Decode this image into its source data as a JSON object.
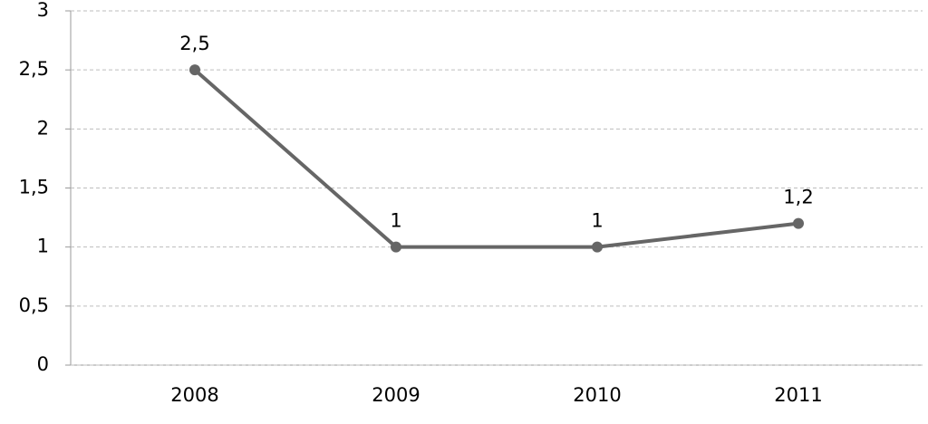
{
  "chart_data": {
    "type": "line",
    "categories": [
      "2008",
      "2009",
      "2010",
      "2011"
    ],
    "series": [
      {
        "name": "Series 1",
        "color": "#666666",
        "values": [
          2.5,
          1,
          1,
          1.2
        ],
        "value_labels": [
          "2,5",
          "1",
          "1",
          "1,2"
        ]
      }
    ],
    "ylim": [
      0,
      3
    ],
    "yticks": [
      0,
      {
        "value": 0.5,
        "label": "0,5"
      },
      1,
      {
        "value": 1.5,
        "label": "1,5"
      },
      2,
      {
        "value": 2.5,
        "label": "2,5"
      },
      3
    ],
    "grid": true
  }
}
